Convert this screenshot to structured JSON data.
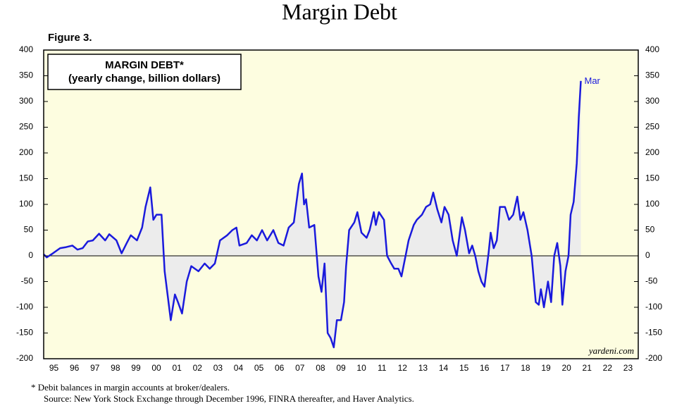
{
  "chart_data": {
    "type": "line",
    "title": "Margin Debt",
    "figure_label": "Figure 3.",
    "box_title": "MARGIN DEBT*",
    "box_subtitle": "(yearly change, billion dollars)",
    "end_label": "Mar",
    "source_credit": "yardeni.com",
    "footnote": "*  Debit balances in margin accounts at broker/dealers.",
    "source": "Source: New York Stock Exchange through December 1996, FINRA thereafter, and Haver Analytics.",
    "xlim": [
      1995,
      2024
    ],
    "ylim": [
      -200,
      400
    ],
    "yticks": [
      -200,
      -150,
      -100,
      -50,
      0,
      50,
      100,
      150,
      200,
      250,
      300,
      350,
      400
    ],
    "xticks": [
      {
        "value": 1995.5,
        "label": "95"
      },
      {
        "value": 1996.5,
        "label": "96"
      },
      {
        "value": 1997.5,
        "label": "97"
      },
      {
        "value": 1998.5,
        "label": "98"
      },
      {
        "value": 1999.5,
        "label": "99"
      },
      {
        "value": 2000.5,
        "label": "00"
      },
      {
        "value": 2001.5,
        "label": "01"
      },
      {
        "value": 2002.5,
        "label": "02"
      },
      {
        "value": 2003.5,
        "label": "03"
      },
      {
        "value": 2004.5,
        "label": "04"
      },
      {
        "value": 2005.5,
        "label": "05"
      },
      {
        "value": 2006.5,
        "label": "06"
      },
      {
        "value": 2007.5,
        "label": "07"
      },
      {
        "value": 2008.5,
        "label": "08"
      },
      {
        "value": 2009.5,
        "label": "09"
      },
      {
        "value": 2010.5,
        "label": "10"
      },
      {
        "value": 2011.5,
        "label": "11"
      },
      {
        "value": 2012.5,
        "label": "12"
      },
      {
        "value": 2013.5,
        "label": "13"
      },
      {
        "value": 2014.5,
        "label": "14"
      },
      {
        "value": 2015.5,
        "label": "15"
      },
      {
        "value": 2016.5,
        "label": "16"
      },
      {
        "value": 2017.5,
        "label": "17"
      },
      {
        "value": 2018.5,
        "label": "18"
      },
      {
        "value": 2019.5,
        "label": "19"
      },
      {
        "value": 2020.5,
        "label": "20"
      },
      {
        "value": 2021.5,
        "label": "21"
      },
      {
        "value": 2022.5,
        "label": "22"
      },
      {
        "value": 2023.5,
        "label": "23"
      }
    ],
    "background": "#fdfde0",
    "fill_color": "#ececec",
    "series": [
      {
        "color": "#1a1adc",
        "x": [
          1995.0,
          1995.15,
          1995.45,
          1995.8,
          1996.1,
          1996.4,
          1996.65,
          1996.9,
          1997.15,
          1997.4,
          1997.7,
          1998.0,
          1998.2,
          1998.55,
          1998.8,
          1999.05,
          1999.25,
          1999.55,
          1999.8,
          1999.97,
          2000.2,
          2000.35,
          2000.5,
          2000.75,
          2000.9,
          2001.2,
          2001.4,
          2001.55,
          2001.75,
          2001.98,
          2002.2,
          2002.55,
          2002.85,
          2003.1,
          2003.35,
          2003.6,
          2003.95,
          2004.2,
          2004.4,
          2004.55,
          2004.9,
          2005.15,
          2005.4,
          2005.65,
          2005.9,
          2006.2,
          2006.45,
          2006.7,
          2006.95,
          2007.2,
          2007.45,
          2007.6,
          2007.7,
          2007.8,
          2007.95,
          2008.2,
          2008.4,
          2008.55,
          2008.7,
          2008.85,
          2009.0,
          2009.15,
          2009.3,
          2009.5,
          2009.65,
          2009.75,
          2009.9,
          2010.15,
          2010.3,
          2010.5,
          2010.75,
          2010.9,
          2011.1,
          2011.2,
          2011.35,
          2011.6,
          2011.75,
          2011.95,
          2012.1,
          2012.3,
          2012.45,
          2012.65,
          2012.8,
          2013.05,
          2013.2,
          2013.45,
          2013.65,
          2013.85,
          2014.0,
          2014.2,
          2014.4,
          2014.55,
          2014.75,
          2014.95,
          2015.15,
          2015.4,
          2015.55,
          2015.75,
          2015.9,
          2016.05,
          2016.2,
          2016.35,
          2016.5,
          2016.7,
          2016.8,
          2016.95,
          2017.1,
          2017.25,
          2017.5,
          2017.7,
          2017.9,
          2018.1,
          2018.25,
          2018.4,
          2018.6,
          2018.8,
          2019.0,
          2019.15,
          2019.25,
          2019.4,
          2019.6,
          2019.75,
          2019.9,
          2020.05,
          2020.2,
          2020.3,
          2020.45,
          2020.6,
          2020.7,
          2020.85,
          2021.0,
          2021.1,
          2021.2
        ],
        "values": [
          3,
          -3,
          5,
          15,
          17,
          20,
          12,
          15,
          28,
          30,
          43,
          30,
          42,
          30,
          5,
          25,
          40,
          30,
          55,
          95,
          133,
          70,
          80,
          80,
          -30,
          -125,
          -75,
          -90,
          -112,
          -50,
          -20,
          -30,
          -15,
          -25,
          -15,
          30,
          40,
          50,
          55,
          20,
          25,
          40,
          30,
          50,
          30,
          50,
          25,
          20,
          55,
          65,
          140,
          160,
          100,
          110,
          55,
          60,
          -40,
          -70,
          -15,
          -150,
          -160,
          -178,
          -125,
          -125,
          -90,
          -20,
          50,
          65,
          85,
          45,
          35,
          50,
          85,
          60,
          85,
          70,
          0,
          -15,
          -25,
          -25,
          -40,
          0,
          30,
          60,
          70,
          80,
          95,
          100,
          123,
          90,
          65,
          95,
          80,
          30,
          0,
          75,
          50,
          5,
          20,
          0,
          -30,
          -50,
          -60,
          5,
          45,
          15,
          30,
          95,
          95,
          70,
          80,
          115,
          70,
          85,
          50,
          0,
          -90,
          -95,
          -65,
          -100,
          -50,
          -90,
          0,
          25,
          -20,
          -95,
          -30,
          0,
          80,
          105,
          180,
          270,
          340
        ]
      }
    ]
  }
}
